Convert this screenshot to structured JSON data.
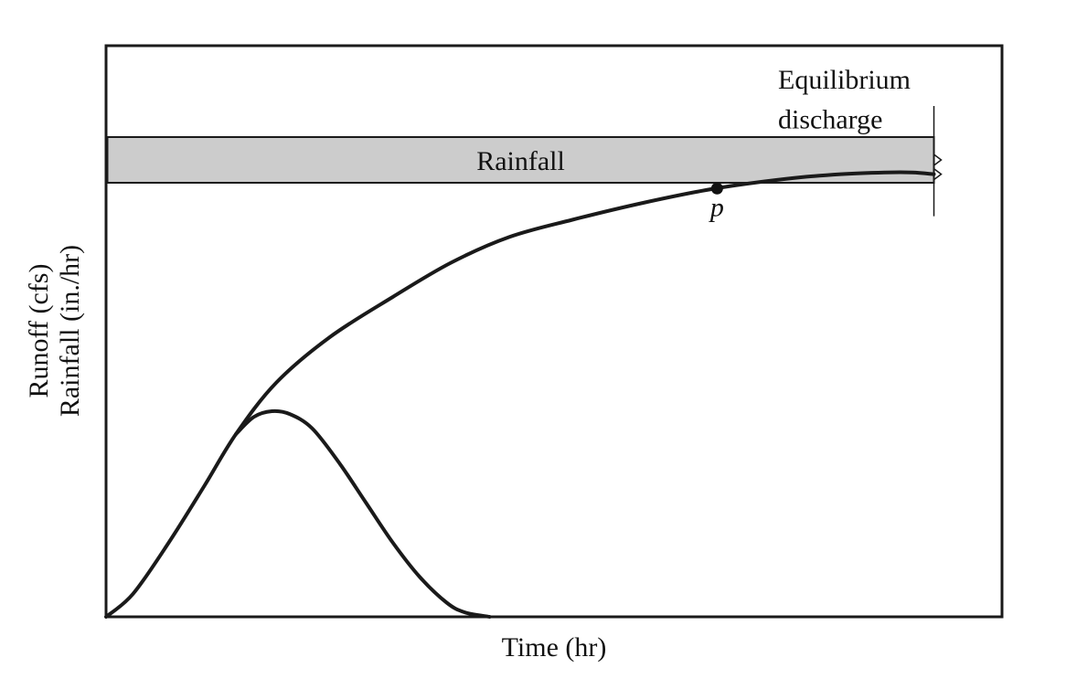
{
  "chart_data": {
    "type": "line",
    "title": "",
    "xlabel": "Time (hr)",
    "ylabel_lines": [
      "Runoff (cfs)",
      "Rainfall (in./hr)"
    ],
    "ticks": "none",
    "grid": false,
    "xlim": [
      0,
      1
    ],
    "ylim": [
      0,
      1
    ],
    "rainfall_band": {
      "label": "Rainfall",
      "y_bottom": 0.76,
      "y_top": 0.84,
      "x_end": 0.924,
      "fill": "#cccccc"
    },
    "series": [
      {
        "role": "equilibrium hydrograph",
        "color": "#1a1a1a",
        "x": [
          0,
          0.03,
          0.07,
          0.11,
          0.145,
          0.19,
          0.25,
          0.32,
          0.385,
          0.45,
          0.52,
          0.6,
          0.68,
          0.76,
          0.82,
          0.87,
          0.9,
          0.924
        ],
        "y": [
          0,
          0.04,
          0.13,
          0.23,
          0.32,
          0.41,
          0.49,
          0.56,
          0.62,
          0.665,
          0.695,
          0.725,
          0.75,
          0.767,
          0.775,
          0.778,
          0.778,
          0.775
        ]
      },
      {
        "role": "partial-duration hydrograph",
        "color": "#1a1a1a",
        "x": [
          0.145,
          0.165,
          0.185,
          0.205,
          0.23,
          0.26,
          0.29,
          0.32,
          0.35,
          0.38,
          0.4,
          0.428
        ],
        "y": [
          0.32,
          0.35,
          0.36,
          0.355,
          0.33,
          0.27,
          0.2,
          0.13,
          0.07,
          0.025,
          0.008,
          0
        ]
      }
    ],
    "annotations": [
      {
        "text": "Equilibrium",
        "x": 0.75,
        "y": 0.925
      },
      {
        "text": "discharge",
        "x": 0.75,
        "y": 0.855
      }
    ],
    "points": [
      {
        "label": "p",
        "x": 0.682,
        "y": 0.75
      }
    ]
  }
}
